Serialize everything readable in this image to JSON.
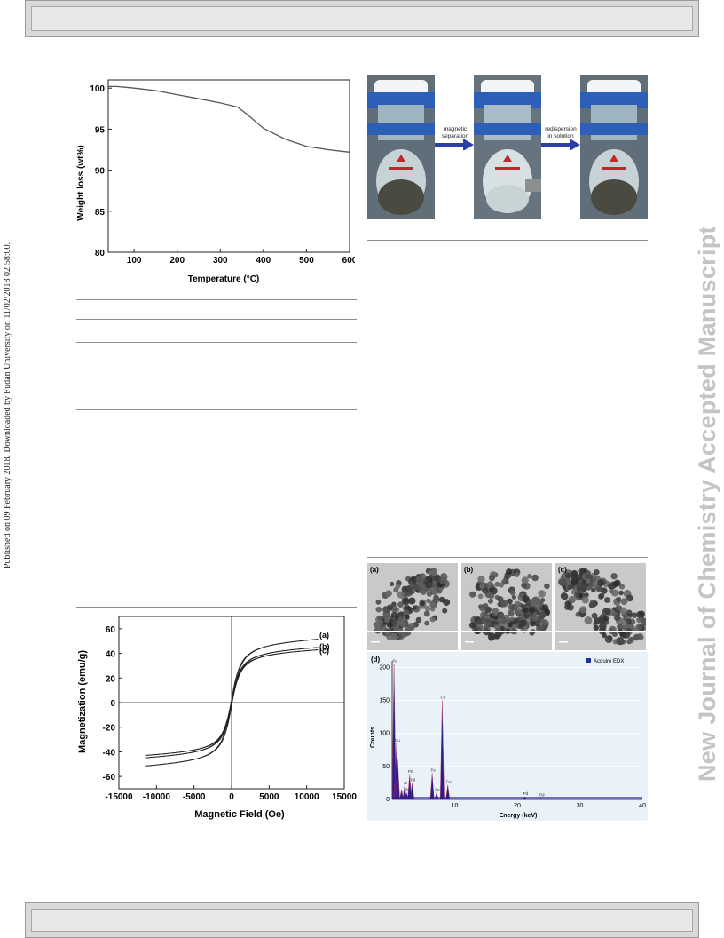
{
  "sidebar": {
    "left_text": "Published on 09 February 2018. Downloaded by Fudan University on 11/02/2018 02:58:00.",
    "right_text": "New Journal of Chemistry Accepted Manuscript"
  },
  "figure_photos": {
    "arrow1_label_line1": "magnetic",
    "arrow1_label_line2": "separation",
    "arrow2_label_line1": "redispersion",
    "arrow2_label_line2": "in solution"
  },
  "figure_tem": {
    "panel_a": "(a)",
    "panel_b": "(b)",
    "panel_c": "(c)",
    "panel_d": "(d)"
  },
  "chart_data": [
    {
      "type": "line",
      "xlabel": "Temperature (°C)",
      "ylabel": "Weight loss (wt%)",
      "xlim": [
        40,
        600
      ],
      "ylim": [
        80,
        101
      ],
      "xticks": [
        100,
        200,
        300,
        400,
        500,
        600
      ],
      "yticks": [
        80,
        85,
        90,
        95,
        100
      ],
      "series": [
        {
          "x": [
            40,
            60,
            100,
            150,
            200,
            250,
            300,
            340,
            360,
            400,
            450,
            500,
            550,
            600
          ],
          "y": [
            100.2,
            100.2,
            100.0,
            99.7,
            99.2,
            98.7,
            98.2,
            97.7,
            96.9,
            95.1,
            93.8,
            92.9,
            92.5,
            92.2
          ]
        }
      ]
    },
    {
      "type": "line",
      "xlabel": "Magnetic Field (Oe)",
      "ylabel": "Magnetization (emu/g)",
      "xlim": [
        -15000,
        15000
      ],
      "ylim": [
        -70,
        70
      ],
      "xticks": [
        -15000,
        -10000,
        -5000,
        0,
        5000,
        10000,
        15000
      ],
      "yticks": [
        -60,
        -40,
        -20,
        0,
        20,
        40,
        60
      ],
      "series": [
        {
          "name": "(a)",
          "ms": 54
        },
        {
          "name": "(b)",
          "ms": 47
        },
        {
          "name": "(c)",
          "ms": 45
        }
      ]
    },
    {
      "type": "bar",
      "xlabel": "Energy (keV)",
      "ylabel": "Counts",
      "legend": "Acquire EDX",
      "xlim": [
        0,
        40
      ],
      "ylim": [
        0,
        210
      ],
      "xticks": [
        10,
        20,
        30,
        40
      ],
      "yticks": [
        0,
        50,
        100,
        150,
        200
      ],
      "peaks": [
        {
          "x": 0.3,
          "y": 205,
          "label": "Fe"
        },
        {
          "x": 0.5,
          "y": 30
        },
        {
          "x": 0.7,
          "y": 85,
          "label": "Cu"
        },
        {
          "x": 0.9,
          "y": 60
        },
        {
          "x": 1.5,
          "y": 15
        },
        {
          "x": 2.0,
          "y": 20,
          "label": "Si"
        },
        {
          "x": 2.3,
          "y": 10,
          "label": "Pd"
        },
        {
          "x": 2.8,
          "y": 38,
          "label": "Pd"
        },
        {
          "x": 3.2,
          "y": 25,
          "label": "Pd"
        },
        {
          "x": 6.4,
          "y": 40,
          "label": "Fe"
        },
        {
          "x": 7.1,
          "y": 10,
          "label": "Fe"
        },
        {
          "x": 8.0,
          "y": 150,
          "label": "Cu"
        },
        {
          "x": 8.9,
          "y": 22,
          "label": "Cu"
        },
        {
          "x": 21.2,
          "y": 4,
          "label": "Pd"
        },
        {
          "x": 23.8,
          "y": 2,
          "label": "Pd"
        }
      ]
    }
  ]
}
